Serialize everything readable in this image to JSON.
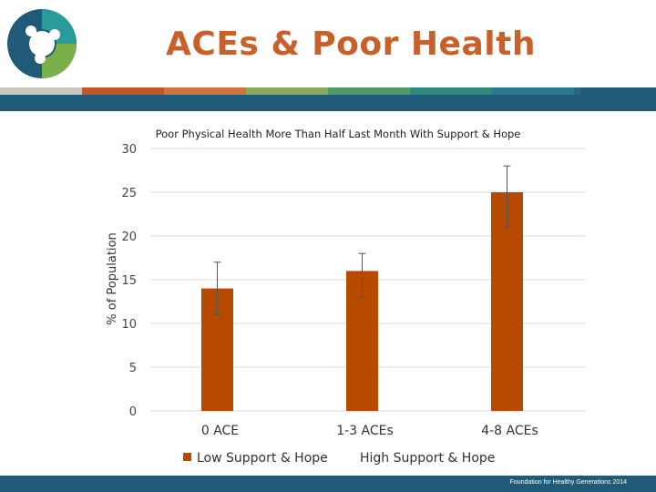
{
  "slide": {
    "title": "ACEs & Poor Health",
    "footer": "Foundation for Healthy Generations 2014"
  },
  "colors": {
    "title": "#c8602a",
    "band": "#1f5a78",
    "bar": "#b84a00",
    "stripe": [
      "#c9c7bd",
      "#c4562a",
      "#d0743a",
      "#8aaa5c",
      "#4f9a66",
      "#2f8a7a",
      "#2a7a90",
      "#2a6585"
    ],
    "logo": [
      "#1f5a78",
      "#2a9a9a",
      "#7ab04a"
    ]
  },
  "chart_data": {
    "type": "bar",
    "title": "Poor Physical Health More Than Half Last Month With Support & Hope",
    "xlabel": "",
    "ylabel": "% of Population",
    "ylim": [
      0,
      30
    ],
    "yticks": [
      0,
      5,
      10,
      15,
      20,
      25,
      30
    ],
    "grid": true,
    "legend_position": "bottom",
    "categories": [
      "0 ACE",
      "1-3 ACEs",
      "4-8 ACEs"
    ],
    "series": [
      {
        "name": "Low Support & Hope",
        "values": [
          14,
          16,
          25
        ],
        "error_low": [
          11,
          13,
          21
        ],
        "error_high": [
          17,
          18,
          28
        ],
        "color": "#b84a00"
      },
      {
        "name": "High Support & Hope",
        "values": [
          null,
          null,
          null
        ],
        "color": "#ffffff"
      }
    ]
  }
}
